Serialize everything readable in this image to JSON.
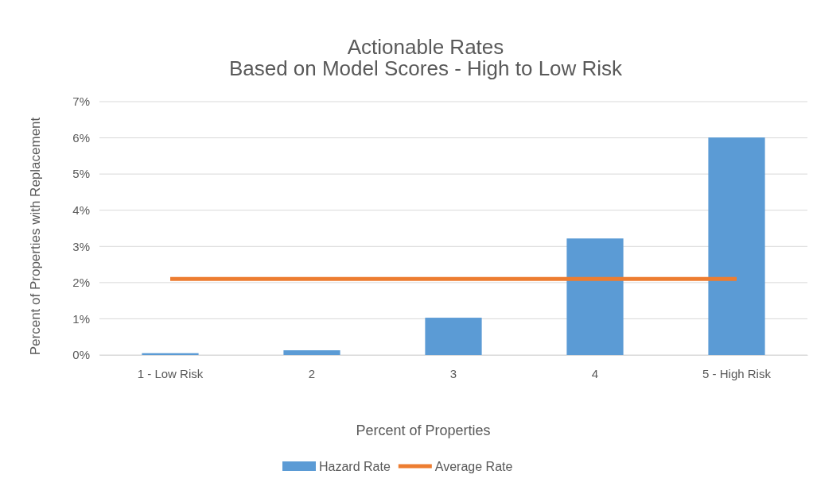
{
  "chart_data": {
    "type": "bar",
    "title": "Actionable Rates",
    "subtitle": "Based on Model Scores - High to Low Risk",
    "xlabel": "Percent of Properties",
    "ylabel": "Percent of Properties with Replacement",
    "categories": [
      "1 - Low Risk",
      "2",
      "3",
      "4",
      "5 - High Risk"
    ],
    "series": [
      {
        "name": "Hazard Rate",
        "color": "#5b9bd5",
        "values": [
          0.05,
          0.13,
          1.03,
          3.22,
          6.01
        ]
      },
      {
        "name": "Average Rate",
        "type": "line",
        "color": "#ed7d31",
        "values": [
          2.1,
          2.1,
          2.1,
          2.1,
          2.1
        ]
      }
    ],
    "ylim": [
      0,
      7
    ],
    "yticks": [
      {
        "value": 0,
        "label": "0%"
      },
      {
        "value": 1,
        "label": "1%"
      },
      {
        "value": 2,
        "label": "2%"
      },
      {
        "value": 3,
        "label": "3%"
      },
      {
        "value": 4,
        "label": "4%"
      },
      {
        "value": 5,
        "label": "5%"
      },
      {
        "value": 6,
        "label": "6%"
      },
      {
        "value": 7,
        "label": "7%"
      }
    ],
    "grid": "y",
    "legend": "bottom"
  }
}
